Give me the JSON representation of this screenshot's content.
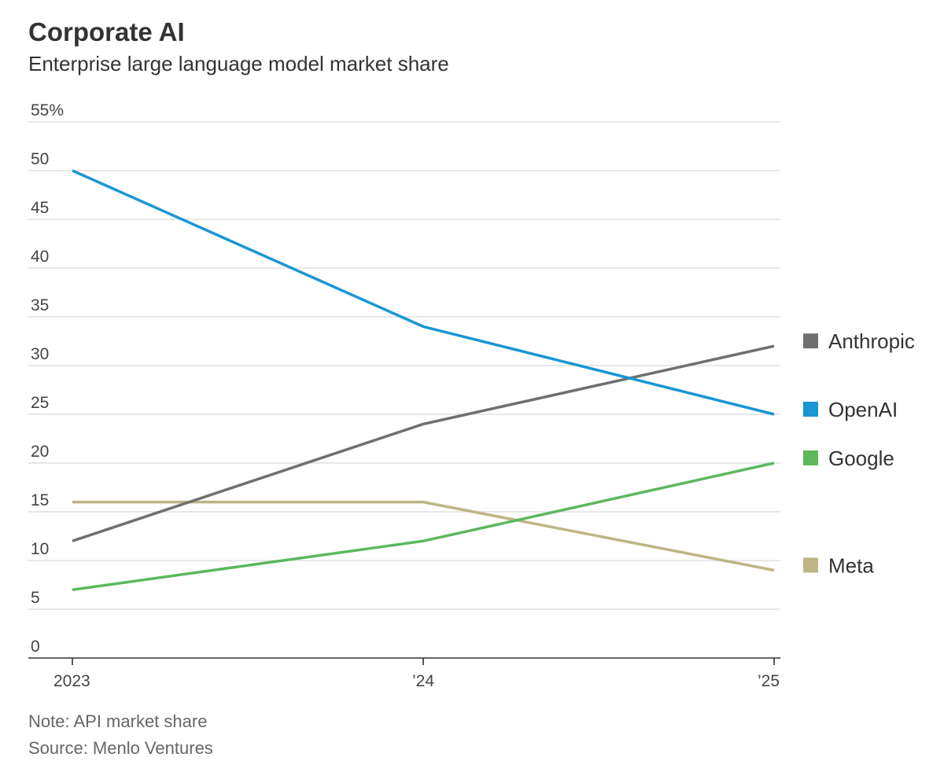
{
  "header": {
    "title": "Corporate AI",
    "subtitle": "Enterprise large language model market share"
  },
  "chart_data": {
    "type": "line",
    "title": "Corporate AI",
    "subtitle": "Enterprise large language model market share",
    "x": [
      2023,
      2024,
      2025
    ],
    "x_tick_labels": [
      "2023",
      "’24",
      "’25"
    ],
    "ylim": [
      0,
      55
    ],
    "y_ticks": [
      0,
      5,
      10,
      15,
      20,
      25,
      30,
      35,
      40,
      45,
      50,
      55
    ],
    "y_tick_labels": [
      "0",
      "5",
      "10",
      "15",
      "20",
      "25",
      "30",
      "35",
      "40",
      "45",
      "50",
      "55%"
    ],
    "grid": true,
    "legend_position": "right",
    "series": [
      {
        "name": "Anthropic",
        "values": [
          12,
          24,
          32
        ],
        "color": "#6f6f6f"
      },
      {
        "name": "OpenAI",
        "values": [
          50,
          34,
          25
        ],
        "color": "#1a96d4"
      },
      {
        "name": "Google",
        "values": [
          7,
          12,
          20
        ],
        "color": "#5cb85c"
      },
      {
        "name": "Meta",
        "values": [
          16,
          16,
          9
        ],
        "color": "#bdb585"
      }
    ]
  },
  "footer": {
    "note": "Note: API market share",
    "source": "Source: Menlo Ventures"
  }
}
